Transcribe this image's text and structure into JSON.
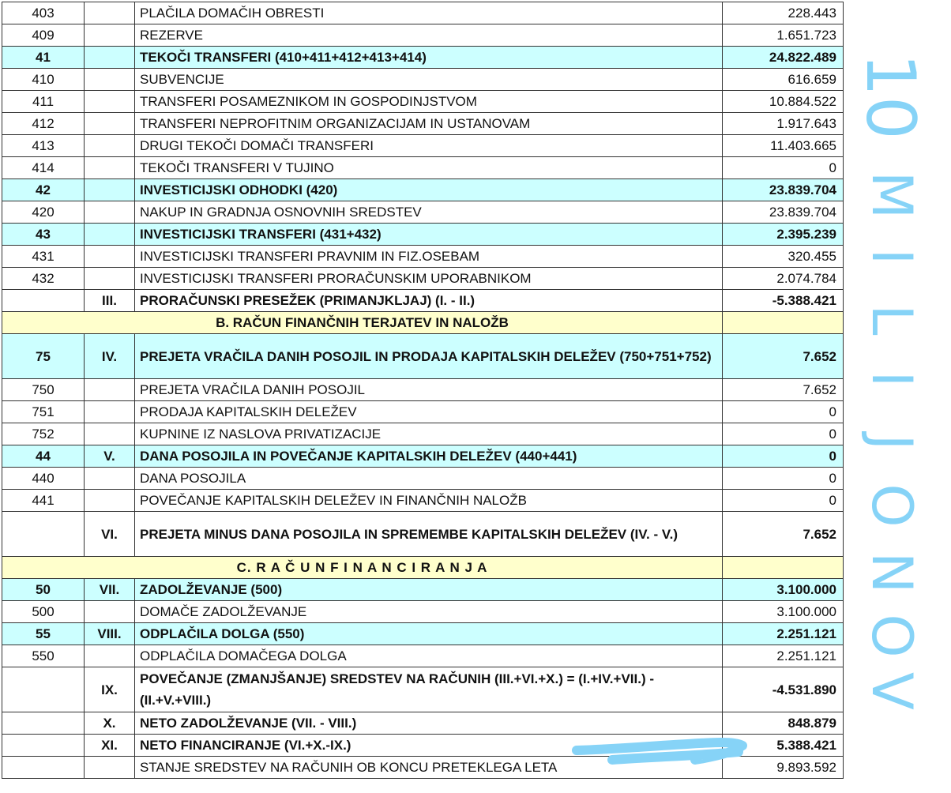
{
  "rows": [
    {
      "code": "403",
      "roman": "",
      "label": "PLAČILA DOMAČIH OBRESTI",
      "value": "228.443",
      "style": "plain"
    },
    {
      "code": "409",
      "roman": "",
      "label": "REZERVE",
      "value": "1.651.723",
      "style": "plain"
    },
    {
      "code": "41",
      "roman": "",
      "label": "TEKOČI TRANSFERI  (410+411+412+413+414)",
      "value": "24.822.489",
      "style": "cyan"
    },
    {
      "code": "410",
      "roman": "",
      "label": "SUBVENCIJE",
      "value": "616.659",
      "style": "plain"
    },
    {
      "code": "411",
      "roman": "",
      "label": "TRANSFERI POSAMEZNIKOM IN GOSPODINJSTVOM",
      "value": "10.884.522",
      "style": "plain"
    },
    {
      "code": "412",
      "roman": "",
      "label": "TRANSFERI NEPROFITNIM ORGANIZACIJAM IN USTANOVAM",
      "value": "1.917.643",
      "style": "plain"
    },
    {
      "code": "413",
      "roman": "",
      "label": "DRUGI TEKOČI DOMAČI TRANSFERI",
      "value": "11.403.665",
      "style": "plain"
    },
    {
      "code": "414",
      "roman": "",
      "label": "TEKOČI TRANSFERI V TUJINO",
      "value": "0",
      "style": "plain"
    },
    {
      "code": "42",
      "roman": "",
      "label": "INVESTICIJSKI ODHODKI  (420)",
      "value": "23.839.704",
      "style": "cyan"
    },
    {
      "code": "420",
      "roman": "",
      "label": "NAKUP IN GRADNJA OSNOVNIH SREDSTEV",
      "value": "23.839.704",
      "style": "plain"
    },
    {
      "code": "43",
      "roman": "",
      "label": "INVESTICIJSKI TRANSFERI  (431+432)",
      "value": "2.395.239",
      "style": "cyan"
    },
    {
      "code": "431",
      "roman": "",
      "label": "INVESTICIJSKI TRANSFERI PRAVNIM IN FIZ.OSEBAM",
      "value": "320.455",
      "style": "plain"
    },
    {
      "code": "432",
      "roman": "",
      "label": "INVESTICIJSKI TRANSFERI PRORAČUNSKIM UPORABNIKOM",
      "value": "2.074.784",
      "style": "plain"
    },
    {
      "code": "",
      "roman": "III.",
      "label": "PRORAČUNSKI PRESEŽEK (PRIMANJKLJAJ) (I. - II.)",
      "value": "-5.388.421",
      "style": "bold"
    },
    {
      "code": "",
      "roman": "",
      "label": "B.  RAČUN FINANČNIH TERJATEV IN NALOŽB",
      "value": "",
      "style": "section"
    },
    {
      "code": "75",
      "roman": "IV.",
      "label": "PREJETA VRAČILA DANIH POSOJIL IN PRODAJA KAPITALSKIH DELEŽEV (750+751+752)",
      "value": "7.652",
      "style": "cyan-dbl"
    },
    {
      "code": "750",
      "roman": "",
      "label": "PREJETA VRAČILA DANIH POSOJIL",
      "value": "7.652",
      "style": "plain"
    },
    {
      "code": "751",
      "roman": "",
      "label": "PRODAJA KAPITALSKIH DELEŽEV",
      "value": "0",
      "style": "plain"
    },
    {
      "code": "752",
      "roman": "",
      "label": "KUPNINE IZ NASLOVA PRIVATIZACIJE",
      "value": "0",
      "style": "plain"
    },
    {
      "code": "44",
      "roman": "V.",
      "label": "DANA POSOJILA IN POVEČANJE KAPITALSKIH DELEŽEV  (440+441)",
      "value": "0",
      "style": "cyan"
    },
    {
      "code": "440",
      "roman": "",
      "label": "DANA POSOJILA",
      "value": "0",
      "style": "plain"
    },
    {
      "code": "441",
      "roman": "",
      "label": "POVEČANJE KAPITALSKIH DELEŽEV IN FINANČNIH NALOŽB",
      "value": "0",
      "style": "plain"
    },
    {
      "code": "",
      "roman": "VI.",
      "label": "PREJETA MINUS DANA POSOJILA IN SPREMEMBE KAPITALSKIH DELEŽEV  (IV. - V.)",
      "value": "7.652",
      "style": "bold-dbl"
    },
    {
      "code": "",
      "roman": "",
      "label": "C.  R A Č U N   F I N A N C I R A N J A",
      "value": "",
      "style": "section"
    },
    {
      "code": "50",
      "roman": "VII.",
      "label": "ZADOLŽEVANJE  (500)",
      "value": "3.100.000",
      "style": "cyan"
    },
    {
      "code": "500",
      "roman": "",
      "label": "DOMAČE ZADOLŽEVANJE",
      "value": "3.100.000",
      "style": "plain"
    },
    {
      "code": "55",
      "roman": "VIII.",
      "label": "ODPLAČILA  DOLGA  (550)",
      "value": "2.251.121",
      "style": "cyan"
    },
    {
      "code": "550",
      "roman": "",
      "label": "ODPLAČILA DOMAČEGA DOLGA",
      "value": "2.251.121",
      "style": "plain"
    },
    {
      "code": "",
      "roman": "IX.",
      "label": "POVEČANJE (ZMANJŠANJE) SREDSTEV NA RAČUNIH (III.+VI.+X.) = (I.+IV.+VII.) - (II.+V.+VIII.)",
      "value": "-4.531.890",
      "style": "bold-dbl"
    },
    {
      "code": "",
      "roman": "X.",
      "label": "NETO ZADOLŽEVANJE  (VII. - VIII.)",
      "value": "848.879",
      "style": "bold"
    },
    {
      "code": "",
      "roman": "XI.",
      "label": "NETO FINANCIRANJE  (VI.+X.-IX.)",
      "value": "5.388.421",
      "style": "bold"
    },
    {
      "code": "",
      "roman": "",
      "label": "STANJE SREDSTEV NA RAČUNIH OB KONCU PRETEKLEGA LETA",
      "value": "9.893.592",
      "style": "plain"
    }
  ],
  "annotation": {
    "number": "10",
    "letters": [
      "M",
      "I",
      "L",
      "I",
      "J",
      "O",
      "N",
      "O",
      "V"
    ],
    "color": "#86d3f7"
  },
  "colors": {
    "cyan": "#ccffff",
    "yellow": "#ffffcc"
  }
}
